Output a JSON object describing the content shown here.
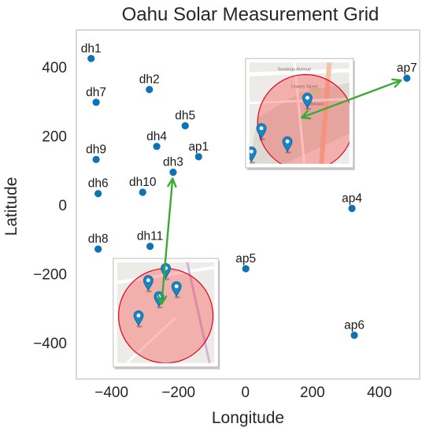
{
  "chart_data": {
    "type": "scatter",
    "title": "Oahu Solar Measurement Grid",
    "xlabel": "Longitude",
    "ylabel": "Latitude",
    "xlim": [
      -505,
      520
    ],
    "ylim": [
      -505,
      508
    ],
    "xticks": [
      -400,
      -200,
      0,
      200,
      400
    ],
    "yticks": [
      400,
      200,
      0,
      -200,
      -400
    ],
    "grid": false,
    "point_color": "#0c73b4",
    "series": [
      {
        "points": [
          {
            "label": "dh1",
            "x": -461,
            "y": 425
          },
          {
            "label": "dh2",
            "x": -287,
            "y": 335
          },
          {
            "label": "dh7",
            "x": -446,
            "y": 298
          },
          {
            "label": "dh5",
            "x": -180,
            "y": 230
          },
          {
            "label": "dh4",
            "x": -265,
            "y": 170
          },
          {
            "label": "ap1",
            "x": -140,
            "y": 140
          },
          {
            "label": "dh9",
            "x": -446,
            "y": 132
          },
          {
            "label": "dh3",
            "x": -216,
            "y": 95
          },
          {
            "label": "dh10",
            "x": -307,
            "y": 37
          },
          {
            "label": "dh6",
            "x": -440,
            "y": 33
          },
          {
            "label": "ap4",
            "x": 318,
            "y": -10
          },
          {
            "label": "dh8",
            "x": -440,
            "y": -128
          },
          {
            "label": "dh11",
            "x": -285,
            "y": -120
          },
          {
            "label": "ap5",
            "x": 1,
            "y": -185
          },
          {
            "label": "ap6",
            "x": 325,
            "y": -378
          },
          {
            "label": "ap7",
            "x": 482,
            "y": 368
          }
        ]
      }
    ],
    "insets": [
      {
        "name": "inset-upper-right",
        "x0": 0,
        "x1": 322,
        "y0": 108,
        "y1": 425,
        "street_labels": [
          "Saratoga Avenue",
          "Lewers Street",
          "Kalakaua"
        ]
      },
      {
        "name": "inset-lower-left",
        "x0": -395,
        "x1": -81,
        "y0": -470,
        "y1": -155,
        "street_labels": []
      }
    ],
    "arrows": [
      {
        "from": "dh3",
        "to_inset": "inset-lower-left",
        "color": "#3aaa35"
      },
      {
        "from": "ap7",
        "to_inset": "inset-upper-right",
        "color": "#3aaa35"
      }
    ]
  }
}
